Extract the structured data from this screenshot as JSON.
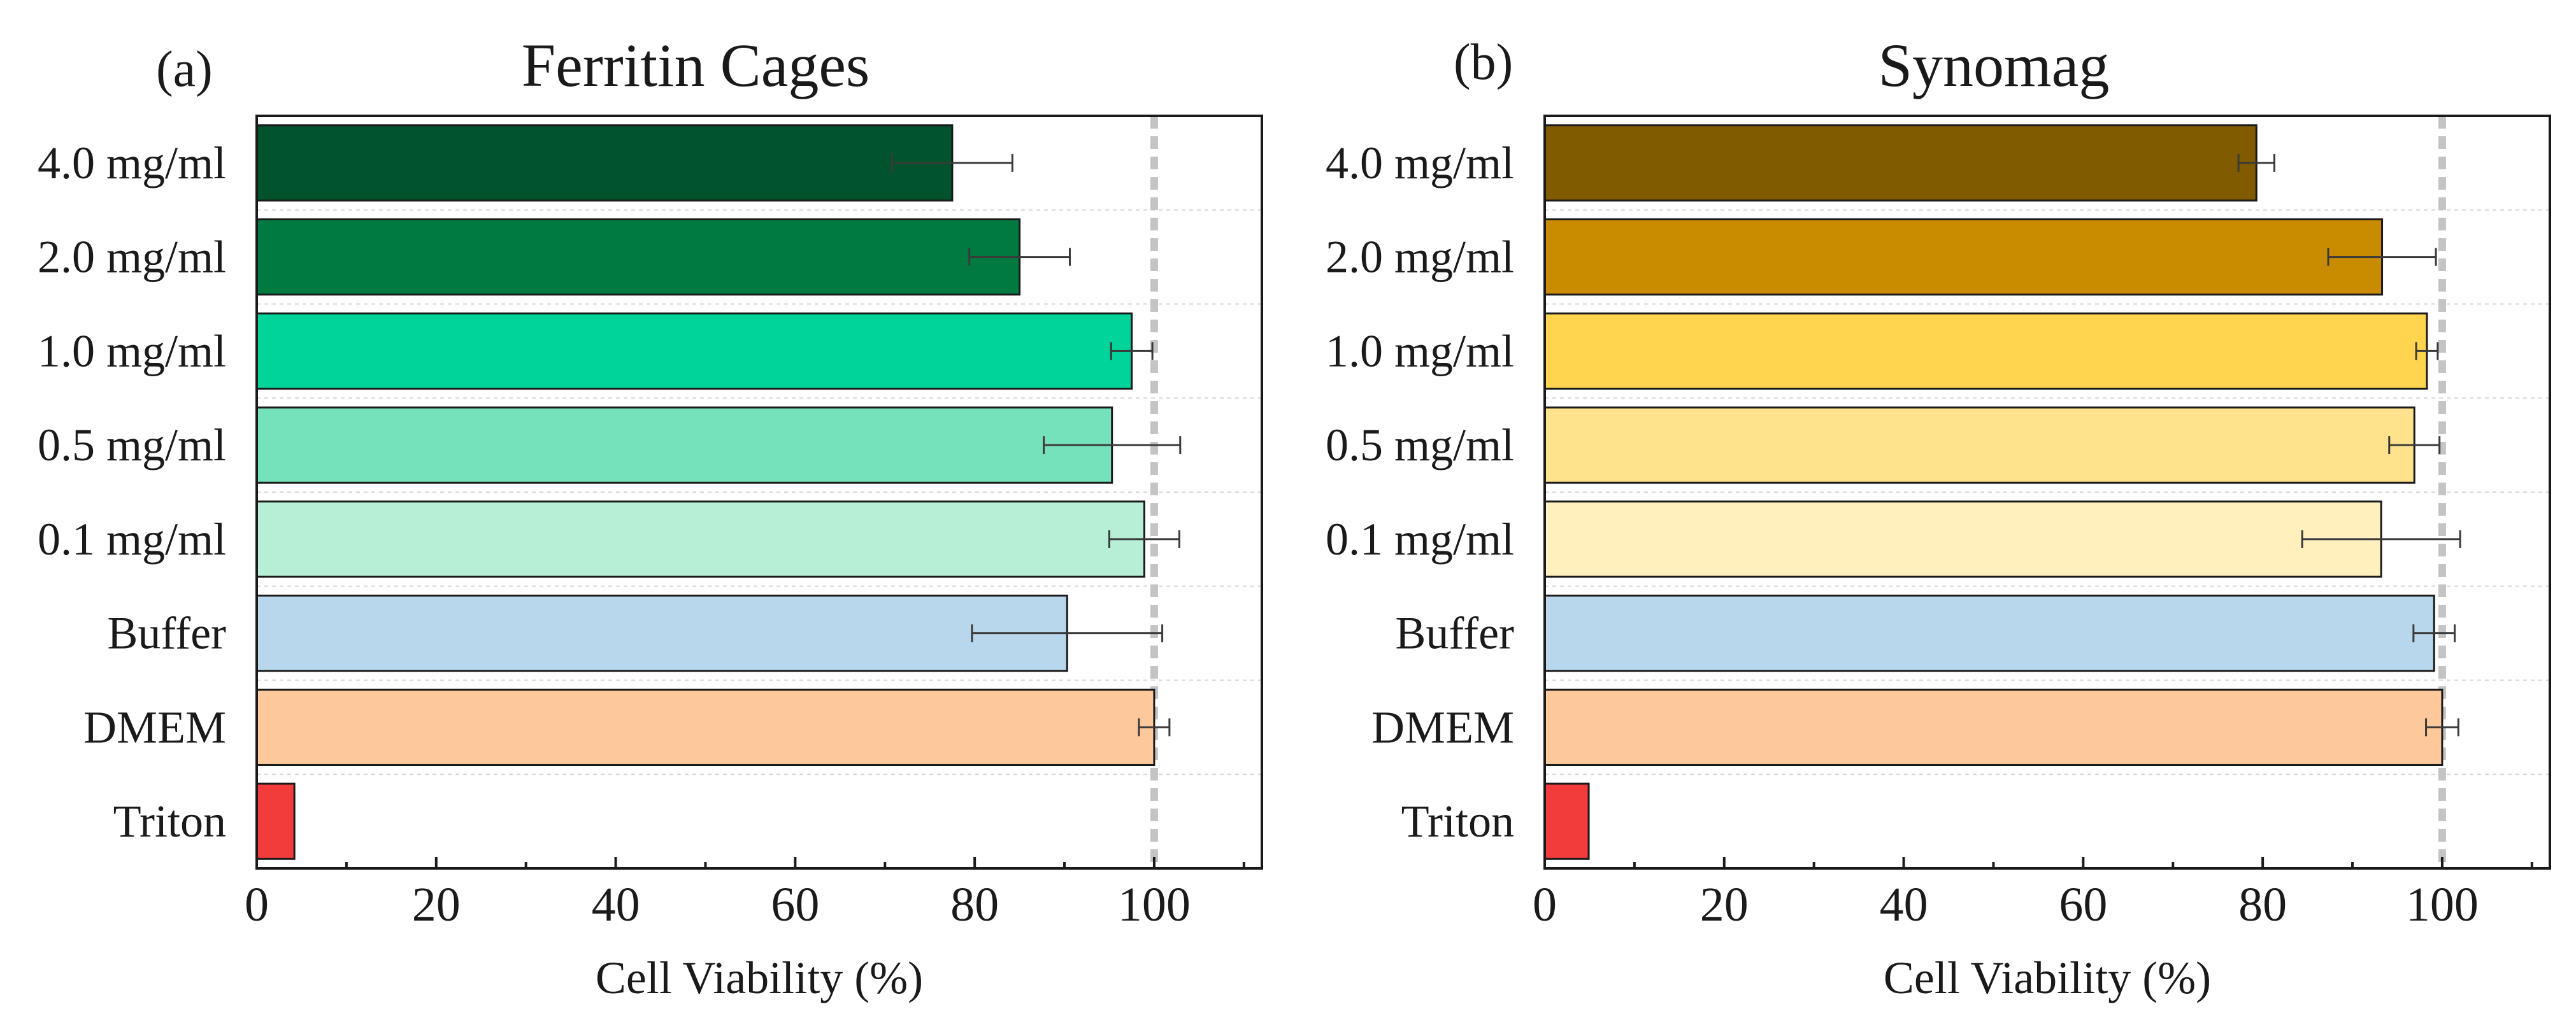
{
  "chart_data": [
    {
      "type": "bar",
      "orientation": "horizontal",
      "panel_label": "(a)",
      "title": "Ferritin Cages",
      "xlabel": "Cell Viability (%)",
      "ylabel": "",
      "xlim": [
        0,
        112
      ],
      "xticks": [
        0,
        20,
        40,
        60,
        80,
        100
      ],
      "reference_line": 100,
      "grid": true,
      "categories": [
        "4.0 mg/ml",
        "2.0 mg/ml",
        "1.0 mg/ml",
        "0.5 mg/ml",
        "0.1 mg/ml",
        "Buffer",
        "DMEM",
        "Triton"
      ],
      "values": [
        77.5,
        85.0,
        97.5,
        95.3,
        98.9,
        90.3,
        100.0,
        4.2
      ],
      "errors": [
        6.7,
        5.6,
        2.3,
        7.6,
        3.9,
        10.6,
        1.7,
        0.3
      ],
      "colors": [
        "#00532c",
        "#007a40",
        "#00d49b",
        "#76e2bb",
        "#b6efd6",
        "#b9d7ec",
        "#fdc99a",
        "#f23c3c"
      ]
    },
    {
      "type": "bar",
      "orientation": "horizontal",
      "panel_label": "(b)",
      "title": "Synomag",
      "xlabel": "Cell Viability (%)",
      "ylabel": "",
      "xlim": [
        0,
        112
      ],
      "xticks": [
        0,
        20,
        40,
        60,
        80,
        100
      ],
      "reference_line": 100,
      "grid": true,
      "categories": [
        "4.0 mg/ml",
        "2.0 mg/ml",
        "1.0 mg/ml",
        "0.5 mg/ml",
        "0.1 mg/ml",
        "Buffer",
        "DMEM",
        "Triton"
      ],
      "values": [
        79.3,
        93.3,
        98.3,
        96.9,
        93.2,
        99.1,
        100.0,
        4.9
      ],
      "errors": [
        2.0,
        6.0,
        1.2,
        2.8,
        8.8,
        2.3,
        1.8,
        0.3
      ],
      "colors": [
        "#805b00",
        "#c98b00",
        "#ffd54f",
        "#ffe28b",
        "#fff0bd",
        "#b9d7ec",
        "#fdc99a",
        "#f23c3c"
      ]
    }
  ]
}
